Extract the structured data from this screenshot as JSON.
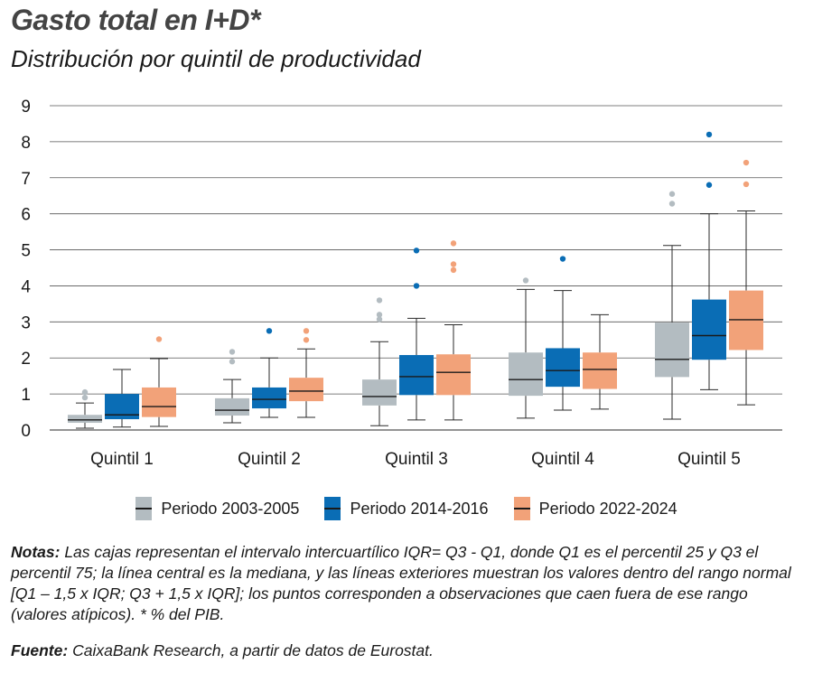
{
  "title": "Gasto total en I+D*",
  "subtitle": "Distribución por quintil de productividad",
  "colors": {
    "p1": "#b3bcc1",
    "p2": "#0a6db5",
    "p3": "#f2a279",
    "median": "#1a1a1a",
    "grid": "#555555"
  },
  "chart_data": {
    "type": "boxplot",
    "ylim": [
      0,
      9
    ],
    "yticks": [
      "0",
      "1",
      "2",
      "3",
      "4",
      "5",
      "6",
      "7",
      "8",
      "9"
    ],
    "categories": [
      "Quintil 1",
      "Quintil 2",
      "Quintil 3",
      "Quintil 4",
      "Quintil 5"
    ],
    "series": [
      {
        "name": "Periodo 2003-2005",
        "boxes": [
          {
            "low": 0.05,
            "q1": 0.2,
            "median": 0.28,
            "q3": 0.42,
            "high": 0.75,
            "outliers": [
              0.9,
              1.05
            ]
          },
          {
            "low": 0.2,
            "q1": 0.4,
            "median": 0.55,
            "q3": 0.88,
            "high": 1.4,
            "outliers": [
              1.9,
              2.17
            ]
          },
          {
            "low": 0.12,
            "q1": 0.68,
            "median": 0.93,
            "q3": 1.4,
            "high": 2.45,
            "outliers": [
              3.07,
              3.2,
              3.6
            ]
          },
          {
            "low": 0.33,
            "q1": 0.95,
            "median": 1.4,
            "q3": 2.15,
            "high": 3.9,
            "outliers": [
              4.15
            ]
          },
          {
            "low": 0.3,
            "q1": 1.47,
            "median": 1.96,
            "q3": 2.98,
            "high": 5.12,
            "outliers": [
              6.28,
              6.55
            ]
          }
        ]
      },
      {
        "name": "Periodo 2014-2016",
        "boxes": [
          {
            "low": 0.08,
            "q1": 0.3,
            "median": 0.42,
            "q3": 1.0,
            "high": 1.68,
            "outliers": []
          },
          {
            "low": 0.35,
            "q1": 0.6,
            "median": 0.85,
            "q3": 1.18,
            "high": 2.0,
            "outliers": [
              2.75
            ]
          },
          {
            "low": 0.28,
            "q1": 0.97,
            "median": 1.48,
            "q3": 2.08,
            "high": 3.1,
            "outliers": [
              4.0,
              4.98
            ]
          },
          {
            "low": 0.55,
            "q1": 1.2,
            "median": 1.65,
            "q3": 2.27,
            "high": 3.87,
            "outliers": [
              4.75
            ]
          },
          {
            "low": 1.12,
            "q1": 1.95,
            "median": 2.62,
            "q3": 3.62,
            "high": 6.0,
            "outliers": [
              6.8,
              8.2
            ]
          }
        ]
      },
      {
        "name": "Periodo 2022-2024",
        "boxes": [
          {
            "low": 0.1,
            "q1": 0.36,
            "median": 0.65,
            "q3": 1.18,
            "high": 1.98,
            "outliers": [
              2.52
            ]
          },
          {
            "low": 0.35,
            "q1": 0.8,
            "median": 1.08,
            "q3": 1.45,
            "high": 2.25,
            "outliers": [
              2.5,
              2.75
            ]
          },
          {
            "low": 0.28,
            "q1": 0.97,
            "median": 1.6,
            "q3": 2.1,
            "high": 2.92,
            "outliers": [
              4.44,
              4.6,
              5.18
            ]
          },
          {
            "low": 0.58,
            "q1": 1.14,
            "median": 1.68,
            "q3": 2.15,
            "high": 3.2,
            "outliers": []
          },
          {
            "low": 0.7,
            "q1": 2.22,
            "median": 3.06,
            "q3": 3.87,
            "high": 6.08,
            "outliers": [
              6.82,
              7.42
            ]
          }
        ]
      }
    ],
    "legend_position": "bottom",
    "grid": true
  },
  "notes": {
    "label": "Notas:",
    "text": "Las cajas representan el intervalo intercuartílico IQR= Q3 - Q1, donde Q1 es el percentil 25 y Q3 el percentil 75; la línea central es la mediana, y las líneas exteriores muestran los valores dentro del rango normal [Q1 – 1,5 x IQR; Q3 + 1,5 x IQR]; los puntos corresponden a observaciones que caen fuera de ese rango (valores atípicos). * % del PIB."
  },
  "source": {
    "label": "Fuente:",
    "text": "CaixaBank Research, a  partir de datos de Eurostat."
  }
}
